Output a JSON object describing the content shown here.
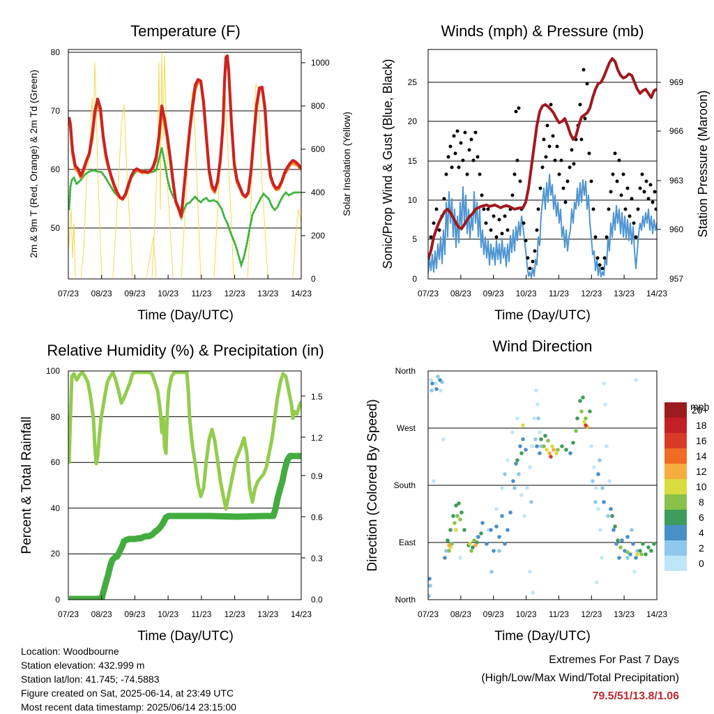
{
  "panels": [
    {
      "id": "temperature",
      "title": "Temperature (F)",
      "xlabel": "Time (Day/UTC)",
      "ylabel_left": "2m & 9m T (Red, Orange) & 2m Td (Green)",
      "ylabel_right": "Solar Insolation (Yellow)",
      "x_ticks": [
        "07/23",
        "08/23",
        "09/23",
        "10/23",
        "11/23",
        "12/23",
        "13/23",
        "14/23"
      ],
      "y_left_ticks": [
        "50",
        "60",
        "70",
        "80"
      ],
      "y_right_ticks": [
        "0",
        "200",
        "400",
        "600",
        "800",
        "1000"
      ]
    },
    {
      "id": "winds",
      "title": "Winds (mph) & Pressure (mb)",
      "xlabel": "Time (Day/UTC)",
      "ylabel_left": "Sonic/Prop Wind & Gust (Blue, Black)",
      "ylabel_right": "Station Pressure (Maroon)",
      "x_ticks": [
        "07/23",
        "08/23",
        "09/23",
        "10/23",
        "11/23",
        "12/23",
        "13/23",
        "14/23"
      ],
      "y_left_ticks": [
        "0",
        "5",
        "10",
        "15",
        "20",
        "25"
      ],
      "y_right_ticks": [
        "957",
        "960",
        "963",
        "966",
        "969"
      ]
    },
    {
      "id": "humidity",
      "title": "Relative Humidity (%) & Precipitation (in)",
      "xlabel": "Time (Day/UTC)",
      "ylabel_left": "Percent & Total Rainfall",
      "x_ticks": [
        "07/23",
        "08/23",
        "09/23",
        "10/23",
        "11/23",
        "12/23",
        "13/23",
        "14/23"
      ],
      "y_left_ticks": [
        "0",
        "20",
        "40",
        "60",
        "80",
        "100"
      ],
      "y_right_ticks": [
        "0.0",
        "0.3",
        "0.6",
        "0.9",
        "1.2",
        "1.5"
      ]
    },
    {
      "id": "direction",
      "title": "Wind Direction",
      "xlabel": "Time (Day/UTC)",
      "ylabel_left": "Direction (Colored By Speed)",
      "x_ticks": [
        "07/23",
        "08/23",
        "09/23",
        "10/23",
        "11/23",
        "12/23",
        "13/23",
        "14/23"
      ],
      "y_left_ticks": [
        "North",
        "East",
        "South",
        "West",
        "North"
      ]
    }
  ],
  "legend": {
    "title": "mph",
    "labels": [
      "0",
      "2",
      "4",
      "6",
      "8",
      "10",
      "12",
      "14",
      "16",
      "18",
      "20+"
    ],
    "colors": [
      "#bfe6f8",
      "#8ec8ec",
      "#4a8fca",
      "#3d9c5b",
      "#88c24a",
      "#d9dc3e",
      "#f6ac3e",
      "#ef6b26",
      "#d83a28",
      "#c31f27",
      "#9b1b1e"
    ]
  },
  "colors": {
    "temp_2m": "#cc2222",
    "temp_9m": "#f07f23",
    "dewpoint": "#3eb33e",
    "solar": "#f5d84a",
    "gust": "#000000",
    "wind": "#4f95d2",
    "pressure": "#a0191e",
    "rh": "#93cc4e",
    "precip": "#43ac3f"
  },
  "info": {
    "location": "Location: Woodbourne",
    "elevation": "Station elevation: 432.999 m",
    "latlon": "Station lat/lon: 41.745; -74.5883",
    "created": "Figure created on Sat, 2025-06-14, at 23:49 UTC",
    "recent": "Most recent data timestamp: 2025/06/14 23:15:00"
  },
  "extremes": {
    "line1": "Extremes For Past 7 Days",
    "line2": "(High/Low/Max Wind/Total Precipitation)",
    "values": "79.5/51/13.8/1.06"
  },
  "chart_data": [
    {
      "type": "line",
      "title": "Temperature (F)",
      "x_range": [
        "07/23",
        "14/23"
      ],
      "ylim": [
        42,
        81
      ],
      "y2lim": [
        0,
        1060
      ],
      "series": [
        {
          "name": "2m T",
          "x": [
            7,
            7.3,
            7.5,
            7.7,
            7.8,
            7.95,
            8.1,
            8.35,
            8.5,
            8.7,
            8.85,
            9.0,
            9.3,
            9.6,
            9.75,
            9.9,
            10.1,
            10.35,
            10.5,
            10.75,
            10.95,
            11.1,
            11.5,
            11.75,
            11.95,
            12.1,
            12.35,
            12.55,
            12.75,
            12.9,
            13.1,
            13.35,
            13.55,
            13.75,
            13.9,
            14.0
          ],
          "y": [
            69,
            63,
            58,
            60,
            66,
            72,
            66,
            58,
            56,
            55,
            56,
            60,
            59,
            59,
            62,
            73,
            60,
            53,
            62,
            75,
            72,
            66,
            56,
            66,
            79,
            72,
            58,
            56,
            56,
            63,
            72,
            58,
            56,
            61,
            62,
            60
          ]
        },
        {
          "name": "2m Td",
          "x": [
            7,
            7.2,
            7.4,
            7.6,
            7.8,
            8.0,
            8.2,
            8.5,
            8.7,
            8.9,
            9.1,
            9.4,
            9.7,
            9.9,
            10.1,
            10.3,
            10.5,
            10.8,
            11.0,
            11.3,
            11.5,
            11.8,
            12.0,
            12.2,
            12.4,
            12.6,
            12.8,
            13.0,
            13.2,
            13.4,
            13.6,
            13.8,
            14.0
          ],
          "y": [
            53,
            58,
            58,
            60,
            59,
            60,
            58,
            57,
            55,
            56,
            59,
            59,
            59,
            63,
            57,
            51,
            55,
            54,
            55,
            56,
            54,
            53,
            52,
            47,
            44,
            50,
            52,
            54,
            58,
            57,
            56,
            55,
            56
          ]
        },
        {
          "name": "Solar Insolation",
          "axis": "right",
          "x": [
            7.45,
            7.6,
            7.75,
            7.95,
            8.45,
            8.6,
            8.75,
            8.95,
            9.45,
            9.6,
            9.75,
            9.95,
            10.45,
            10.6,
            10.75,
            10.95,
            11.45,
            11.6,
            11.75,
            11.95,
            12.45,
            12.6,
            12.75,
            12.95,
            13.45,
            13.6,
            13.75,
            13.95
          ],
          "y": [
            0,
            420,
            980,
            0,
            0,
            520,
            980,
            0,
            0,
            120,
            320,
            0,
            0,
            780,
            1050,
            0,
            0,
            620,
            850,
            0,
            0,
            620,
            860,
            0,
            0,
            600,
            940,
            0
          ]
        }
      ]
    },
    {
      "type": "line",
      "title": "Winds (mph) & Pressure (mb)",
      "x_range": [
        "07/23",
        "14/23"
      ],
      "ylim": [
        0,
        29
      ],
      "y2lim": [
        957,
        971
      ],
      "series": [
        {
          "name": "Wind",
          "x": [
            7.0,
            7.2,
            7.4,
            7.6,
            7.8,
            8.0,
            8.2,
            8.4,
            8.6,
            8.8,
            9.0,
            9.2,
            9.4,
            9.6,
            9.8,
            10.0,
            10.2,
            10.4,
            10.6,
            10.8,
            11.0,
            11.2,
            11.4,
            11.6,
            11.8,
            12.0,
            12.2,
            12.4,
            12.6,
            12.8,
            13.0,
            13.2,
            13.4,
            13.6,
            13.8,
            14.0
          ],
          "y": [
            2,
            3,
            5,
            6,
            9,
            8,
            7,
            9,
            6,
            4,
            3,
            4,
            3,
            4,
            5,
            6,
            1,
            2,
            5,
            10,
            9,
            6,
            4,
            5,
            9,
            10,
            7,
            2,
            1,
            6,
            8,
            5,
            6,
            7,
            7,
            6
          ]
        },
        {
          "name": "Gust",
          "x": [
            7.0,
            7.2,
            7.4,
            7.6,
            7.8,
            8.0,
            8.2,
            8.4,
            8.6,
            8.8,
            9.0,
            9.2,
            9.4,
            9.6,
            9.8,
            10.0,
            10.2,
            10.4,
            10.6,
            10.8,
            11.0,
            11.2,
            11.4,
            11.6,
            11.8,
            12.0,
            12.2,
            12.4,
            12.6,
            12.8,
            13.0,
            13.2,
            13.4,
            13.6,
            13.8,
            14.0
          ],
          "y": [
            4,
            6,
            9,
            14,
            16,
            15,
            12,
            14,
            9,
            7,
            6,
            7,
            6,
            8,
            10,
            17,
            2,
            4,
            9,
            18,
            16,
            12,
            8,
            10,
            17,
            19,
            12,
            4,
            2,
            10,
            14,
            9,
            11,
            12,
            11,
            10
          ]
        },
        {
          "name": "Station Pressure",
          "axis": "right",
          "x": [
            7.0,
            7.3,
            7.6,
            7.9,
            8.2,
            8.5,
            8.8,
            9.1,
            9.4,
            9.7,
            10.0,
            10.3,
            10.5,
            10.7,
            10.9,
            11.1,
            11.3,
            11.5,
            11.7,
            11.9,
            12.1,
            12.3,
            12.5,
            12.7,
            12.9,
            13.2,
            13.5,
            13.8,
            14.0
          ],
          "y": [
            957.6,
            959.2,
            960.6,
            961.6,
            961.2,
            960.2,
            960.7,
            961.4,
            961.4,
            961.1,
            961.1,
            962.6,
            964.6,
            966.8,
            967.5,
            966.6,
            965.9,
            966.5,
            965.2,
            966.2,
            968.2,
            968.3,
            969.7,
            970.4,
            969.3,
            969.5,
            968.9,
            968.6,
            968.6
          ]
        }
      ]
    },
    {
      "type": "line",
      "title": "Relative Humidity (%) & Precipitation (in)",
      "x_range": [
        "07/23",
        "14/23"
      ],
      "ylim": [
        0,
        100
      ],
      "y2lim": [
        0,
        1.67
      ],
      "series": [
        {
          "name": "Relative Humidity",
          "x": [
            7.0,
            7.1,
            7.3,
            7.5,
            7.7,
            7.85,
            8.0,
            8.2,
            8.4,
            8.6,
            8.8,
            9.0,
            9.2,
            9.4,
            9.6,
            9.8,
            9.9,
            10.1,
            10.3,
            10.5,
            10.7,
            10.9,
            11.1,
            11.3,
            11.5,
            11.7,
            11.9,
            12.1,
            12.3,
            12.5,
            12.7,
            12.9,
            13.1,
            13.3,
            13.5,
            13.7,
            13.8,
            14.0
          ],
          "y": [
            60,
            98,
            99,
            98,
            82,
            62,
            72,
            97,
            98,
            92,
            99,
            100,
            100,
            98,
            99,
            88,
            64,
            100,
            100,
            100,
            72,
            58,
            75,
            88,
            68,
            48,
            65,
            82,
            60,
            42,
            55,
            70,
            66,
            50,
            82,
            100,
            82,
            86
          ]
        },
        {
          "name": "Total Precipitation",
          "axis": "right",
          "x": [
            7.0,
            7.5,
            8.0,
            8.2,
            8.4,
            8.6,
            8.8,
            9.0,
            9.3,
            9.6,
            9.8,
            10.0,
            10.5,
            11.0,
            11.5,
            12.0,
            12.5,
            13.0,
            13.2,
            13.4,
            13.6,
            13.8,
            14.0
          ],
          "y": [
            0.0,
            0.0,
            0.0,
            0.22,
            0.32,
            0.42,
            0.43,
            0.45,
            0.47,
            0.52,
            0.54,
            0.61,
            0.61,
            0.61,
            0.61,
            0.62,
            0.62,
            0.62,
            0.63,
            0.75,
            0.97,
            1.04,
            1.04
          ]
        }
      ]
    },
    {
      "type": "scatter",
      "title": "Wind Direction",
      "x_range": [
        "07/23",
        "14/23"
      ],
      "y_categories": [
        "North",
        "East",
        "South",
        "West",
        "North"
      ],
      "series": [
        {
          "name": "Direction",
          "x": [
            7.1,
            7.2,
            7.3,
            7.5,
            7.7,
            7.9,
            8.1,
            8.3,
            8.5,
            8.7,
            8.9,
            9.1,
            9.3,
            9.5,
            9.7,
            9.9,
            10.1,
            10.3,
            10.5,
            10.7,
            10.9,
            11.1,
            11.3,
            11.5,
            11.7,
            11.9,
            12.1,
            12.3,
            12.5,
            12.7,
            12.9,
            13.1,
            13.3,
            13.5,
            13.7,
            13.9
          ],
          "y": [
            340,
            345,
            350,
            80,
            95,
            110,
            105,
            85,
            80,
            90,
            100,
            110,
            95,
            95,
            110,
            150,
            200,
            230,
            250,
            280,
            275,
            265,
            260,
            285,
            290,
            300,
            330,
            290,
            240,
            200,
            150,
            120,
            100,
            95,
            90,
            85
          ],
          "speed": [
            3,
            4,
            3,
            6,
            8,
            9,
            7,
            6,
            6,
            7,
            5,
            4,
            5,
            4,
            6,
            3,
            2,
            4,
            7,
            11,
            12,
            10,
            8,
            9,
            10,
            8,
            3,
            2,
            3,
            4,
            6,
            5,
            7,
            8,
            7,
            6
          ]
        }
      ]
    }
  ]
}
